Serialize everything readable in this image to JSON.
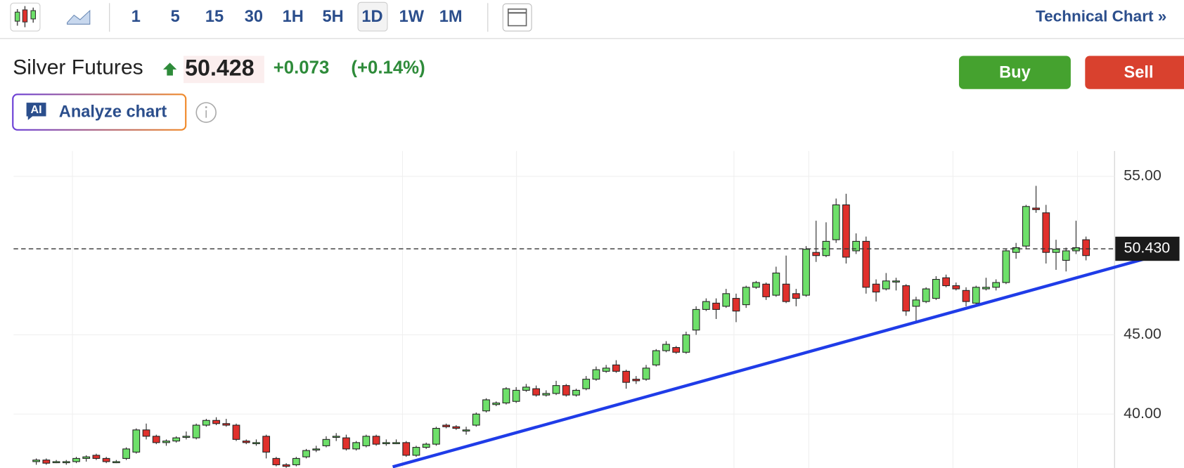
{
  "toolbar": {
    "intervals": [
      "1",
      "5",
      "15",
      "30",
      "1H",
      "5H",
      "1D",
      "1W",
      "1M"
    ],
    "technical_chart": "Technical Chart »"
  },
  "header": {
    "title": "Silver Futures",
    "price": "50.428",
    "change": "+0.073",
    "change_percent": "(+0.14%)",
    "buy": "Buy",
    "sell": "Sell",
    "analyze": "Analyze chart",
    "ai_badge": "AI"
  },
  "chart_data": {
    "type": "candlestick",
    "up_color": "#6ee06a",
    "down_color": "#e0302c",
    "grid": true,
    "open": [
      37.0,
      37.1,
      37.0,
      37.0,
      37.0,
      37.2,
      37.4,
      37.2,
      37.0,
      37.2,
      37.6,
      39.0,
      38.6,
      38.2,
      38.3,
      38.6,
      38.5,
      39.3,
      39.6,
      39.4,
      39.3,
      38.3,
      38.2,
      38.6,
      37.2,
      36.8,
      36.8,
      37.3,
      37.8,
      38.0,
      38.6,
      38.5,
      37.8,
      38.0,
      38.6,
      38.2,
      38.2,
      38.2,
      37.4,
      37.9,
      38.1,
      39.3,
      39.2,
      39.0,
      39.3,
      40.2,
      40.6,
      40.7,
      40.8,
      41.5,
      41.6,
      41.2,
      41.3,
      41.8,
      41.2,
      41.6,
      42.2,
      42.7,
      43.1,
      42.7,
      42.2,
      42.2,
      43.1,
      44.0,
      44.2,
      43.9,
      45.3,
      46.6,
      47.0,
      46.8,
      47.3,
      46.9,
      48.0,
      48.2,
      47.5,
      48.2,
      47.6,
      47.5,
      50.2,
      50.0,
      51.0,
      53.2,
      50.3,
      50.9,
      48.2,
      47.9,
      48.4,
      48.1,
      46.8,
      47.1,
      47.3,
      48.6,
      48.1,
      47.8,
      47.0,
      47.9,
      48.0,
      48.3,
      50.2,
      50.6,
      53.0,
      52.7,
      50.2,
      49.7,
      50.3,
      51.0
    ],
    "high": [
      37.2,
      37.2,
      37.1,
      37.1,
      37.3,
      37.4,
      37.5,
      37.3,
      37.1,
      37.9,
      39.1,
      39.4,
      38.7,
      38.4,
      38.6,
      38.9,
      39.4,
      39.7,
      39.8,
      39.7,
      39.4,
      38.4,
      38.4,
      38.7,
      37.3,
      36.9,
      37.3,
      37.8,
      38.0,
      38.6,
      38.8,
      38.7,
      38.3,
      38.7,
      38.7,
      38.4,
      38.4,
      38.3,
      38.0,
      38.2,
      39.2,
      39.4,
      39.3,
      39.2,
      40.1,
      41.0,
      40.8,
      41.7,
      41.7,
      41.9,
      41.8,
      41.5,
      42.1,
      41.9,
      41.6,
      42.4,
      43.0,
      43.1,
      43.4,
      42.8,
      42.4,
      43.1,
      44.1,
      44.6,
      44.3,
      45.2,
      46.8,
      47.3,
      47.3,
      47.9,
      47.6,
      48.1,
      48.4,
      48.3,
      49.3,
      50.0,
      47.9,
      50.6,
      52.2,
      52.1,
      53.6,
      53.9,
      51.4,
      51.2,
      48.5,
      48.9,
      48.6,
      48.2,
      47.4,
      48.0,
      48.7,
      48.8,
      48.3,
      48.0,
      48.1,
      48.6,
      48.5,
      50.4,
      50.8,
      53.2,
      54.4,
      53.2,
      51.0,
      50.5,
      52.2,
      51.2
    ],
    "low": [
      36.8,
      36.8,
      36.9,
      36.8,
      36.9,
      37.0,
      37.1,
      36.9,
      36.9,
      37.1,
      37.5,
      38.4,
      38.1,
      38.0,
      38.2,
      38.4,
      38.4,
      39.2,
      39.3,
      39.2,
      38.3,
      38.1,
      38.0,
      37.2,
      36.7,
      36.6,
      36.7,
      37.2,
      37.6,
      37.9,
      38.3,
      37.7,
      37.7,
      37.9,
      38.0,
      38.0,
      38.1,
      37.3,
      37.3,
      37.8,
      38.0,
      39.1,
      39.0,
      38.7,
      39.2,
      40.1,
      40.5,
      40.6,
      40.7,
      41.4,
      41.1,
      41.1,
      41.2,
      41.1,
      41.1,
      41.5,
      42.1,
      42.6,
      42.6,
      41.6,
      41.9,
      42.1,
      43.0,
      43.9,
      43.8,
      43.8,
      45.0,
      46.5,
      46.0,
      46.7,
      45.8,
      46.7,
      47.9,
      47.2,
      47.4,
      47.0,
      46.8,
      47.4,
      49.6,
      49.9,
      50.8,
      49.5,
      50.1,
      47.6,
      47.1,
      47.8,
      47.8,
      46.2,
      45.8,
      47.0,
      47.2,
      48.0,
      47.8,
      46.8,
      46.9,
      47.8,
      47.8,
      48.2,
      49.8,
      50.4,
      52.7,
      49.5,
      49.1,
      49.0,
      50.1,
      49.7
    ],
    "close": [
      37.1,
      36.9,
      37.0,
      37.0,
      37.2,
      37.3,
      37.2,
      37.0,
      37.0,
      37.8,
      39.0,
      38.6,
      38.2,
      38.3,
      38.5,
      38.6,
      39.3,
      39.6,
      39.4,
      39.3,
      38.4,
      38.2,
      38.2,
      37.6,
      36.8,
      36.7,
      37.2,
      37.7,
      37.8,
      38.4,
      38.6,
      37.8,
      38.2,
      38.6,
      38.1,
      38.2,
      38.2,
      37.4,
      37.9,
      38.1,
      39.1,
      39.2,
      39.1,
      39.0,
      40.0,
      40.9,
      40.7,
      41.6,
      41.5,
      41.7,
      41.2,
      41.3,
      41.8,
      41.2,
      41.5,
      42.2,
      42.8,
      42.9,
      42.7,
      42.0,
      42.1,
      42.9,
      44.0,
      44.4,
      43.9,
      45.0,
      46.6,
      47.1,
      46.6,
      47.6,
      46.5,
      48.0,
      48.3,
      47.4,
      48.9,
      47.1,
      47.3,
      50.4,
      50.0,
      50.9,
      53.2,
      49.9,
      50.9,
      48.0,
      47.7,
      48.4,
      48.4,
      46.5,
      47.2,
      47.9,
      48.5,
      48.1,
      47.9,
      47.1,
      48.0,
      48.0,
      48.3,
      50.3,
      50.5,
      53.1,
      52.9,
      50.2,
      50.4,
      50.3,
      50.5,
      50.0
    ],
    "xlim": [
      -2.27,
      107.85
    ],
    "ylim": [
      36.6,
      56.6
    ],
    "yticks": [
      {
        "value": 40,
        "label": "40.00"
      },
      {
        "value": 45,
        "label": "45.00"
      },
      {
        "value": 55,
        "label": "55.00"
      }
    ],
    "last_price": {
      "value": 50.43,
      "label": "50.430"
    },
    "trendline": {
      "color": "#1f3ce8",
      "x": [
        35.65,
        111.78
      ],
      "values": [
        36.67,
        49.95
      ]
    }
  }
}
